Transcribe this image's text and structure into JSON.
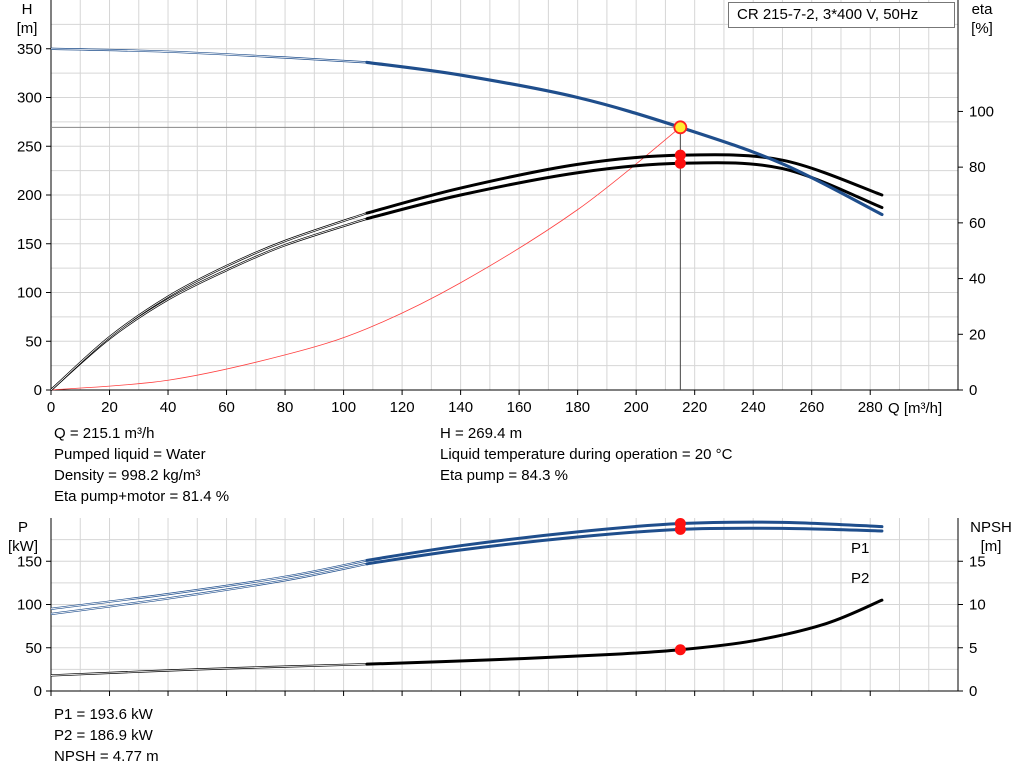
{
  "model": "CR 215-7-2, 3*400 V, 50Hz",
  "chart_data": [
    {
      "type": "line",
      "title": "",
      "xlabel": "Q [m³/h]",
      "ylabel": "H\n[m]",
      "y2label": "eta\n[%]",
      "xlim": [
        0,
        310
      ],
      "ylim": [
        0,
        400
      ],
      "y2lim": [
        0,
        140
      ],
      "xticks": [
        0,
        20,
        40,
        60,
        80,
        100,
        120,
        140,
        160,
        180,
        200,
        220,
        240,
        260,
        280
      ],
      "yticks": [
        0,
        50,
        100,
        150,
        200,
        250,
        300,
        350
      ],
      "y2ticks": [
        0,
        20,
        40,
        60,
        80,
        100
      ],
      "grid": true,
      "series": [
        {
          "axis": "left",
          "color": "#1f4e8c",
          "x": [
            0,
            40,
            80,
            108,
            140,
            180,
            215.1,
            250,
            284
          ],
          "y": [
            350,
            347,
            341,
            336,
            323,
            300,
            269.4,
            232,
            180
          ]
        },
        {
          "axis": "left",
          "color": "#ff4040",
          "x": [
            0,
            40,
            80,
            108,
            140,
            180,
            215.1
          ],
          "y": [
            0,
            10,
            36,
            63,
            110,
            185,
            269.4
          ]
        },
        {
          "axis": "right",
          "color": "#000000",
          "x": [
            0,
            20,
            40,
            60,
            80,
            108,
            140,
            180,
            215.1,
            250,
            284
          ],
          "y": [
            0,
            18.5,
            32.5,
            43,
            52,
            61.5,
            70,
            78,
            81.4,
            79.5,
            65.5
          ]
        },
        {
          "axis": "right",
          "color": "#000000",
          "x": [
            0,
            20,
            40,
            60,
            80,
            108,
            140,
            180,
            215.1,
            250,
            284
          ],
          "y": [
            0,
            19,
            33.5,
            44.5,
            53.5,
            63.5,
            72.5,
            81,
            84.3,
            82.5,
            70
          ]
        }
      ],
      "operating_point": {
        "x": 215.1,
        "y": 269.4
      },
      "eta_points": [
        81.4,
        84.3
      ]
    },
    {
      "type": "line",
      "title": "",
      "xlabel": "",
      "ylabel": "P\n[kW]",
      "y2label": "NPSH\n[m]",
      "xlim": [
        0,
        310
      ],
      "ylim": [
        0,
        200
      ],
      "y2lim": [
        0,
        20
      ],
      "yticks": [
        0,
        50,
        100,
        150
      ],
      "y2ticks": [
        0,
        5,
        10,
        15
      ],
      "grid": true,
      "series": [
        {
          "name": "P1",
          "axis": "left",
          "color": "#1f4e8c",
          "x": [
            0,
            40,
            80,
            108,
            140,
            180,
            215.1,
            250,
            284
          ],
          "y": [
            95,
            112,
            132,
            151,
            168,
            184,
            193.6,
            195,
            190
          ]
        },
        {
          "name": "P2",
          "axis": "left",
          "color": "#1f4e8c",
          "x": [
            0,
            40,
            80,
            108,
            140,
            180,
            215.1,
            250,
            284
          ],
          "y": [
            89,
            107,
            128,
            147,
            163,
            178,
            186.9,
            188,
            185
          ]
        },
        {
          "axis": "right",
          "color": "#000000",
          "x": [
            0,
            50,
            108,
            150,
            190,
            215.1,
            240,
            265,
            284
          ],
          "y": [
            1.8,
            2.5,
            3.1,
            3.6,
            4.2,
            4.77,
            5.8,
            7.8,
            10.5
          ]
        }
      ],
      "operating_points": [
        193.6,
        186.9
      ],
      "npsh_point": 4.77
    }
  ],
  "upper_info": {
    "left": [
      "Q = 215.1 m³/h",
      "Pumped liquid = Water",
      "Density = 998.2 kg/m³",
      "Eta pump+motor = 81.4 %"
    ],
    "right": [
      "H = 269.4 m",
      "Liquid temperature during operation = 20 °C",
      "Eta pump = 84.3 %"
    ]
  },
  "lower_info": [
    "P1 = 193.6 kW",
    "P2 = 186.9 kW",
    "NPSH = 4.77 m"
  ]
}
